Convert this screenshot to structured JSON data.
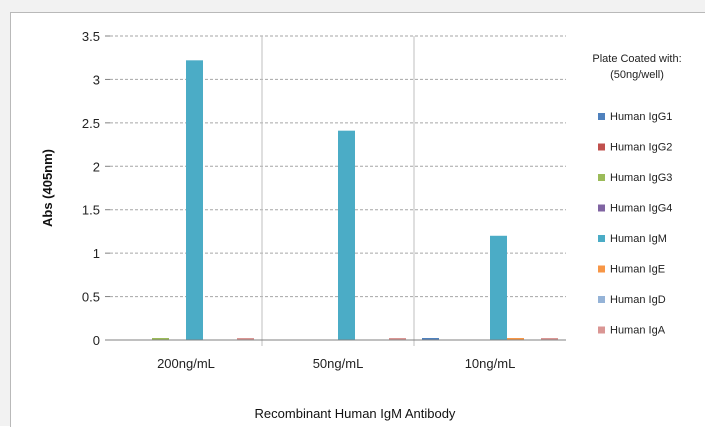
{
  "chart_data": {
    "type": "bar",
    "title": "",
    "xlabel": "Recombinant Human IgM Antibody",
    "ylabel": "Abs (405nm)",
    "ylim": [
      0,
      3.5
    ],
    "yticks": [
      "0",
      "0.5",
      "1",
      "1.5",
      "2",
      "2.5",
      "3",
      "3.5"
    ],
    "categories": [
      "200ng/mL",
      "50ng/mL",
      "10ng/mL"
    ],
    "grid": true,
    "legend": {
      "position": "right",
      "title_line1": "Plate Coated with:",
      "title_line2": "(50ng/well)"
    },
    "series": [
      {
        "name": "Human IgG1",
        "color": "#4f81bd",
        "values": [
          0.0,
          0.0,
          0.01
        ]
      },
      {
        "name": "Human IgG2",
        "color": "#c0504d",
        "values": [
          0.0,
          0.0,
          0.0
        ]
      },
      {
        "name": "Human IgG3",
        "color": "#9bbb59",
        "values": [
          0.01,
          0.0,
          0.0
        ]
      },
      {
        "name": "Human IgG4",
        "color": "#8064a2",
        "values": [
          0.0,
          0.0,
          0.0
        ]
      },
      {
        "name": "Human IgM",
        "color": "#4bacc6",
        "values": [
          3.22,
          2.41,
          1.2
        ]
      },
      {
        "name": "Human IgE",
        "color": "#f79646",
        "values": [
          0.0,
          0.0,
          0.01
        ]
      },
      {
        "name": "Human IgD",
        "color": "#95b3d7",
        "values": [
          0.0,
          0.0,
          0.0
        ]
      },
      {
        "name": "Human IgA",
        "color": "#da9694",
        "values": [
          0.02,
          0.01,
          0.01
        ]
      }
    ]
  }
}
